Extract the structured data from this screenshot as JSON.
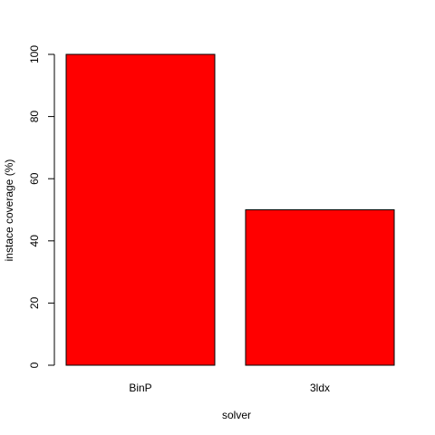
{
  "chart_data": {
    "type": "bar",
    "categories": [
      "BinP",
      "3ldx"
    ],
    "values": [
      100,
      50
    ],
    "title": "",
    "xlabel": "solver",
    "ylabel": "instace coverage (%)",
    "ylim": [
      0,
      100
    ],
    "yticks": [
      0,
      20,
      40,
      60,
      80,
      100
    ],
    "grid": false,
    "legend": "none",
    "bar_color": "#ff0000",
    "bar_stroke": "#000000"
  }
}
